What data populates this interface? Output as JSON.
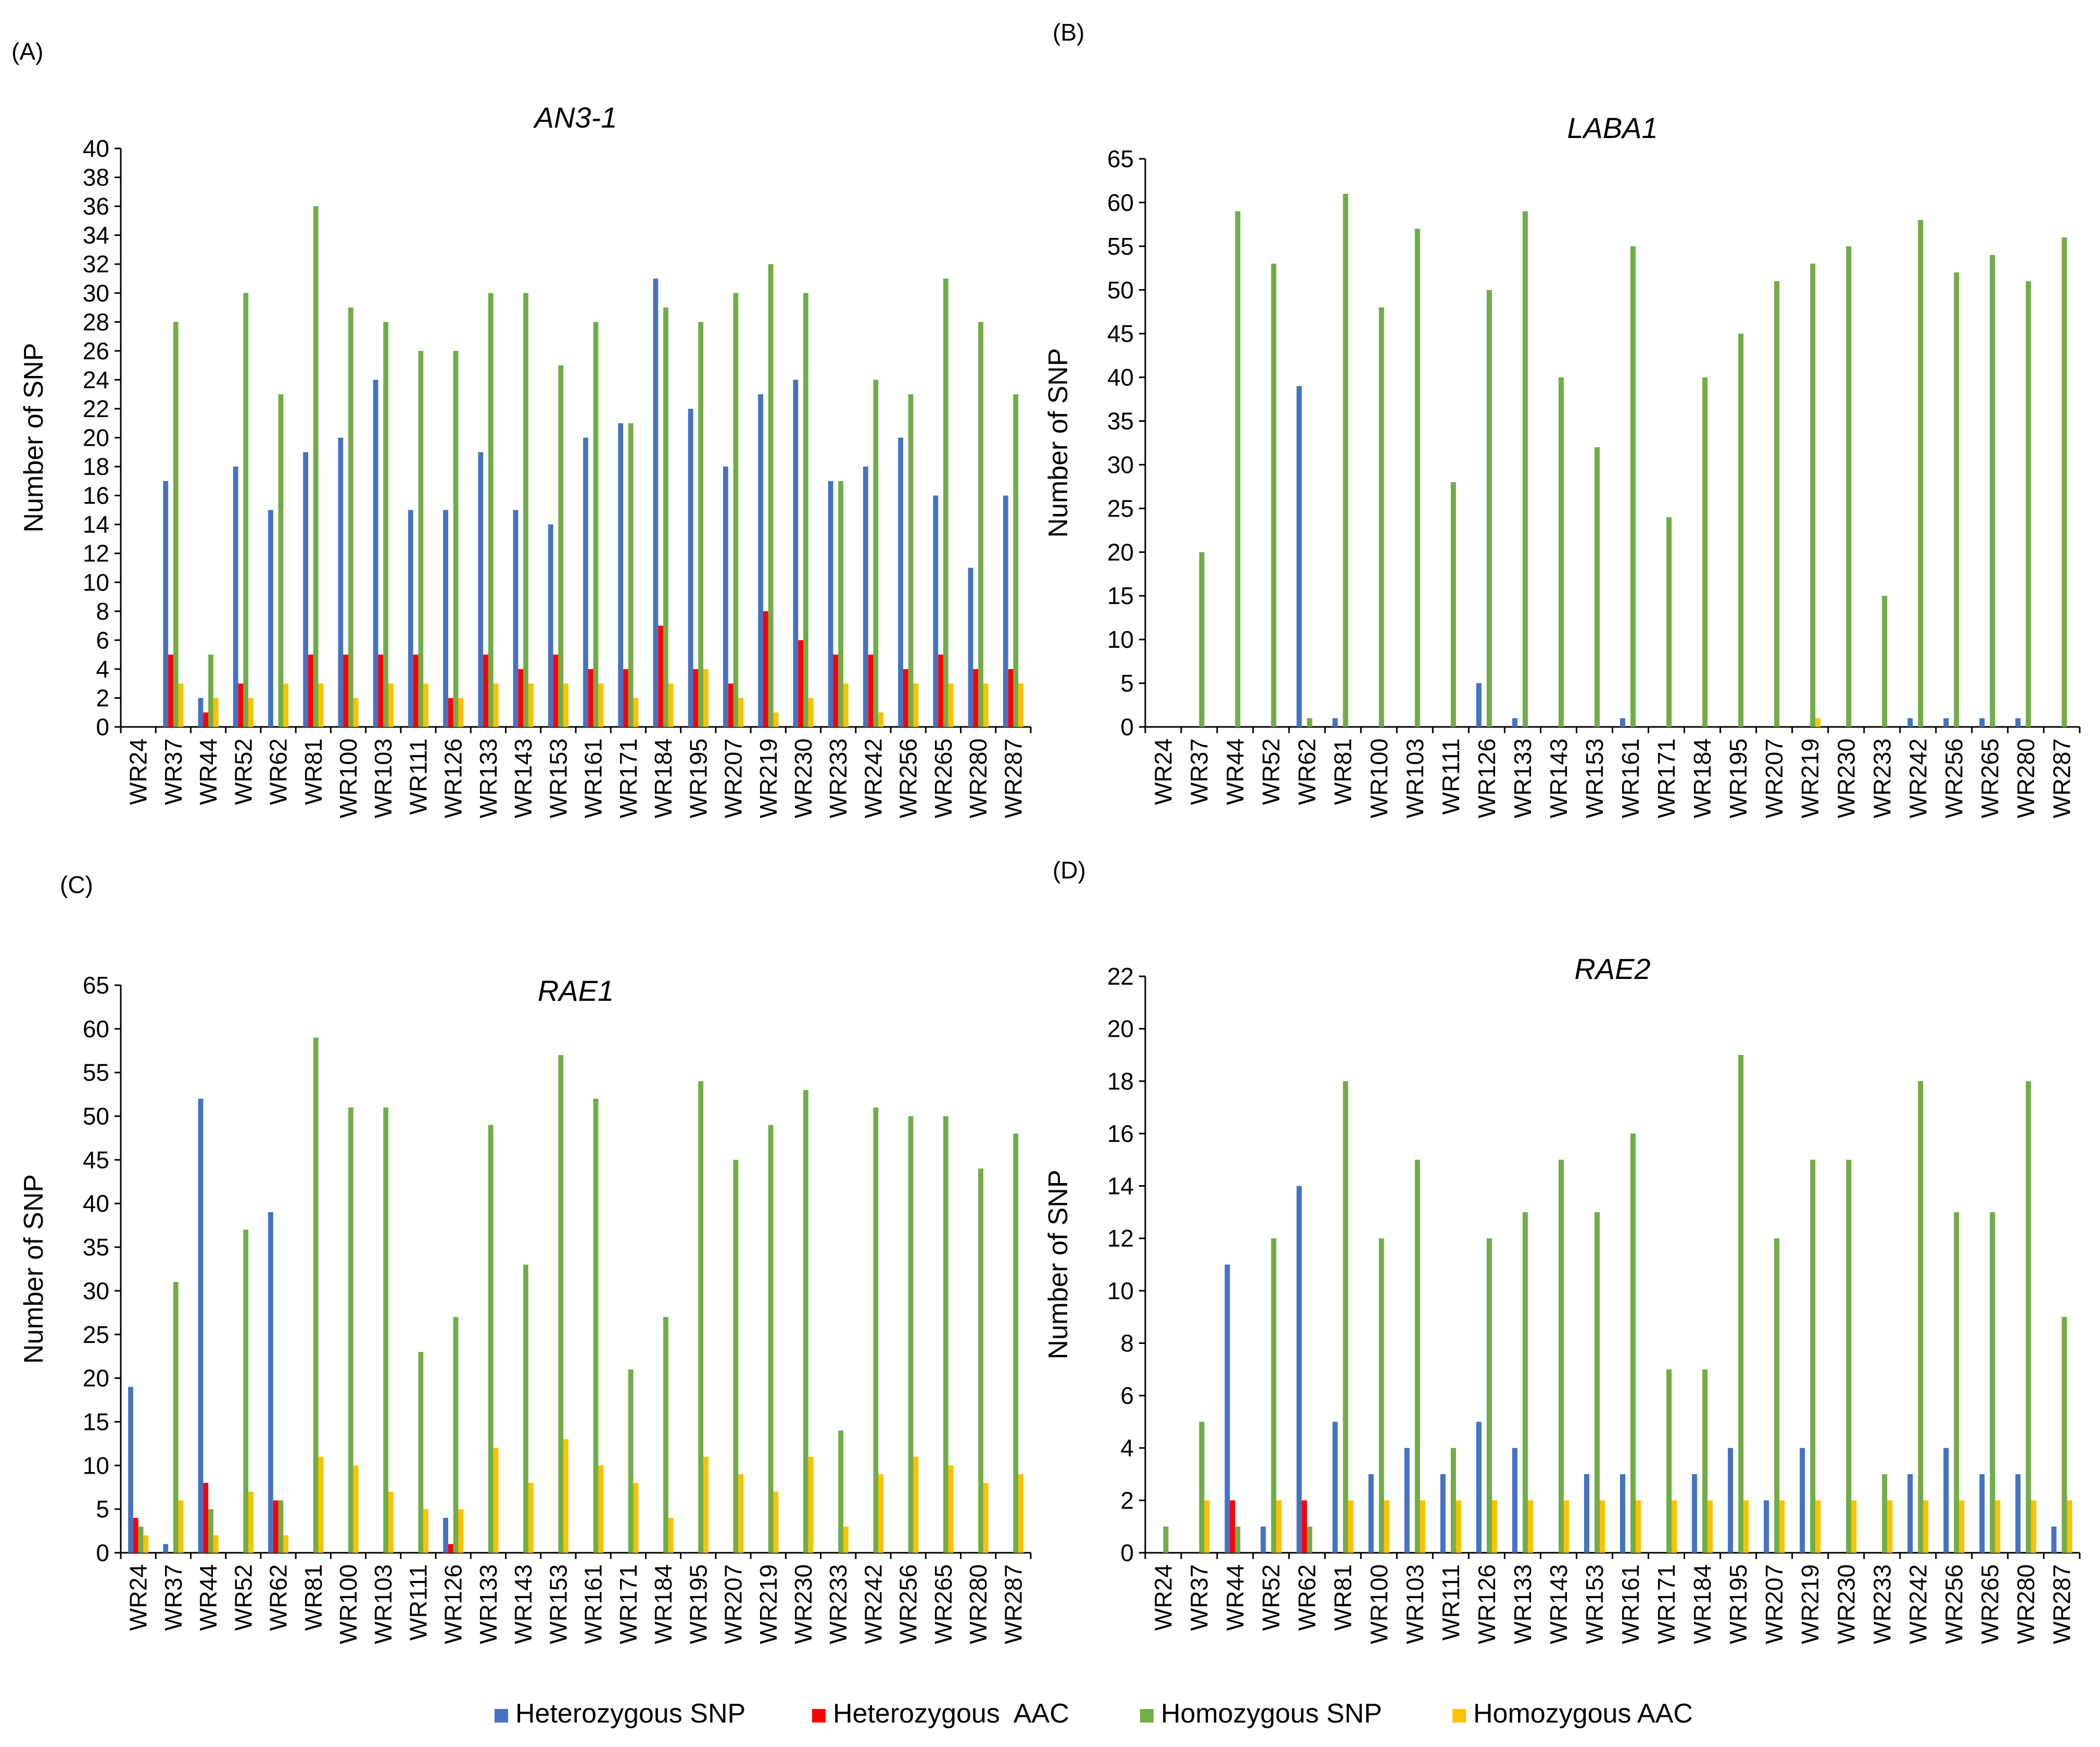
{
  "legend": {
    "items": [
      {
        "name": "Heterozygous SNP",
        "color": "#4472C4"
      },
      {
        "name": "Heterozygous  AAC",
        "color": "#FF0000"
      },
      {
        "name": "Homozygous SNP",
        "color": "#70AD47"
      },
      {
        "name": "Homozygous AAC",
        "color": "#FFC000"
      }
    ]
  },
  "chart_data": [
    {
      "panel": "(A)",
      "type": "bar",
      "title": "AN3-1",
      "ylabel": "Number of SNP",
      "ylim": [
        0,
        40
      ],
      "ystep": 2,
      "categories": [
        "WR24",
        "WR37",
        "WR44",
        "WR52",
        "WR62",
        "WR81",
        "WR100",
        "WR103",
        "WR111",
        "WR126",
        "WR133",
        "WR143",
        "WR153",
        "WR161",
        "WR171",
        "WR184",
        "WR195",
        "WR207",
        "WR219",
        "WR230",
        "WR233",
        "WR242",
        "WR256",
        "WR265",
        "WR280",
        "WR287"
      ],
      "series": [
        {
          "name": "Heterozygous SNP",
          "values": [
            0,
            17,
            2,
            18,
            15,
            19,
            20,
            24,
            15,
            15,
            19,
            15,
            14,
            20,
            21,
            31,
            22,
            18,
            23,
            24,
            17,
            18,
            20,
            16,
            11,
            16
          ]
        },
        {
          "name": "Heterozygous  AAC",
          "values": [
            0,
            5,
            1,
            3,
            0,
            5,
            5,
            5,
            5,
            2,
            5,
            4,
            5,
            4,
            4,
            7,
            4,
            3,
            8,
            6,
            5,
            5,
            4,
            5,
            4,
            4
          ]
        },
        {
          "name": "Homozygous SNP",
          "values": [
            0,
            28,
            5,
            30,
            23,
            36,
            29,
            28,
            26,
            26,
            30,
            30,
            25,
            28,
            21,
            29,
            28,
            30,
            32,
            30,
            17,
            24,
            23,
            31,
            28,
            23
          ]
        },
        {
          "name": "Homozygous AAC",
          "values": [
            0,
            3,
            2,
            2,
            3,
            3,
            2,
            3,
            3,
            2,
            3,
            3,
            3,
            3,
            2,
            3,
            4,
            2,
            1,
            2,
            3,
            1,
            3,
            3,
            3,
            3
          ]
        }
      ]
    },
    {
      "panel": "(B)",
      "type": "bar",
      "title": "LABA1",
      "ylabel": "Number of SNP",
      "ylim": [
        0,
        65
      ],
      "ystep": 5,
      "categories": [
        "WR24",
        "WR37",
        "WR44",
        "WR52",
        "WR62",
        "WR81",
        "WR100",
        "WR103",
        "WR111",
        "WR126",
        "WR133",
        "WR143",
        "WR153",
        "WR161",
        "WR171",
        "WR184",
        "WR195",
        "WR207",
        "WR219",
        "WR230",
        "WR233",
        "WR242",
        "WR256",
        "WR265",
        "WR280",
        "WR287"
      ],
      "series": [
        {
          "name": "Heterozygous SNP",
          "values": [
            0,
            0,
            0,
            0,
            39,
            1,
            0,
            0,
            0,
            5,
            1,
            0,
            0,
            1,
            0,
            0,
            0,
            0,
            0,
            0,
            0,
            1,
            1,
            1,
            1,
            0
          ]
        },
        {
          "name": "Heterozygous  AAC",
          "values": [
            0,
            0,
            0,
            0,
            0,
            0,
            0,
            0,
            0,
            0,
            0,
            0,
            0,
            0,
            0,
            0,
            0,
            0,
            0,
            0,
            0,
            0,
            0,
            0,
            0,
            0
          ]
        },
        {
          "name": "Homozygous SNP",
          "values": [
            0,
            20,
            59,
            53,
            1,
            61,
            48,
            57,
            28,
            50,
            59,
            40,
            32,
            55,
            24,
            40,
            45,
            51,
            53,
            55,
            15,
            58,
            52,
            54,
            51,
            56
          ]
        },
        {
          "name": "Homozygous AAC",
          "values": [
            0,
            0,
            0,
            0,
            0,
            0,
            0,
            0,
            0,
            0,
            0,
            0,
            0,
            0,
            0,
            0,
            0,
            0,
            1,
            0,
            0,
            0,
            0,
            0,
            0,
            0
          ]
        }
      ]
    },
    {
      "panel": "(C)",
      "type": "bar",
      "title": "RAE1",
      "ylabel": "Number of SNP",
      "ylim": [
        0,
        65
      ],
      "ystep": 5,
      "categories": [
        "WR24",
        "WR37",
        "WR44",
        "WR52",
        "WR62",
        "WR81",
        "WR100",
        "WR103",
        "WR111",
        "WR126",
        "WR133",
        "WR143",
        "WR153",
        "WR161",
        "WR171",
        "WR184",
        "WR195",
        "WR207",
        "WR219",
        "WR230",
        "WR233",
        "WR242",
        "WR256",
        "WR265",
        "WR280",
        "WR287"
      ],
      "series": [
        {
          "name": "Heterozygous SNP",
          "values": [
            19,
            1,
            52,
            0,
            39,
            0,
            0,
            0,
            0,
            4,
            0,
            0,
            0,
            0,
            0,
            0,
            0,
            0,
            0,
            0,
            0,
            0,
            0,
            0,
            0,
            0
          ]
        },
        {
          "name": "Heterozygous  AAC",
          "values": [
            4,
            0,
            8,
            0,
            6,
            0,
            0,
            0,
            0,
            1,
            0,
            0,
            0,
            0,
            0,
            0,
            0,
            0,
            0,
            0,
            0,
            0,
            0,
            0,
            0,
            0
          ]
        },
        {
          "name": "Homozygous SNP",
          "values": [
            3,
            31,
            5,
            37,
            6,
            59,
            51,
            51,
            23,
            27,
            49,
            33,
            57,
            52,
            21,
            27,
            54,
            45,
            49,
            53,
            14,
            51,
            50,
            50,
            44,
            48
          ]
        },
        {
          "name": "Homozygous AAC",
          "values": [
            2,
            6,
            2,
            7,
            2,
            11,
            10,
            7,
            5,
            5,
            12,
            8,
            13,
            10,
            8,
            4,
            11,
            9,
            7,
            11,
            3,
            9,
            11,
            10,
            8,
            9
          ]
        }
      ]
    },
    {
      "panel": "(D)",
      "type": "bar",
      "title": "RAE2",
      "ylabel": "Number of SNP",
      "ylim": [
        0,
        22
      ],
      "ystep": 2,
      "categories": [
        "WR24",
        "WR37",
        "WR44",
        "WR52",
        "WR62",
        "WR81",
        "WR100",
        "WR103",
        "WR111",
        "WR126",
        "WR133",
        "WR143",
        "WR153",
        "WR161",
        "WR171",
        "WR184",
        "WR195",
        "WR207",
        "WR219",
        "WR230",
        "WR233",
        "WR242",
        "WR256",
        "WR265",
        "WR280",
        "WR287"
      ],
      "series": [
        {
          "name": "Heterozygous SNP",
          "values": [
            0,
            0,
            11,
            1,
            14,
            5,
            3,
            4,
            3,
            5,
            4,
            0,
            3,
            3,
            0,
            3,
            4,
            2,
            4,
            0,
            0,
            3,
            4,
            3,
            3,
            1
          ]
        },
        {
          "name": "Heterozygous  AAC",
          "values": [
            0,
            0,
            2,
            0,
            2,
            0,
            0,
            0,
            0,
            0,
            0,
            0,
            0,
            0,
            0,
            0,
            0,
            0,
            0,
            0,
            0,
            0,
            0,
            0,
            0,
            0
          ]
        },
        {
          "name": "Homozygous SNP",
          "values": [
            1,
            5,
            1,
            12,
            1,
            18,
            12,
            15,
            4,
            12,
            13,
            15,
            13,
            16,
            7,
            7,
            19,
            12,
            15,
            15,
            3,
            18,
            13,
            13,
            18,
            9
          ]
        },
        {
          "name": "Homozygous AAC",
          "values": [
            0,
            2,
            0,
            2,
            0,
            2,
            2,
            2,
            2,
            2,
            2,
            2,
            2,
            2,
            2,
            2,
            2,
            2,
            2,
            2,
            2,
            2,
            2,
            2,
            2,
            2
          ]
        }
      ]
    }
  ]
}
